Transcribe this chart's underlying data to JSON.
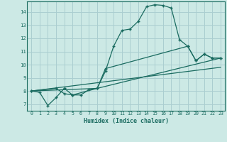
{
  "xlabel": "Humidex (Indice chaleur)",
  "bg_color": "#cce9e5",
  "grid_color": "#aaced0",
  "line_color": "#1a6b60",
  "xlim": [
    -0.5,
    23.5
  ],
  "ylim": [
    6.5,
    14.8
  ],
  "yticks": [
    7,
    8,
    9,
    10,
    11,
    12,
    13,
    14
  ],
  "xticks": [
    0,
    1,
    2,
    3,
    4,
    5,
    6,
    7,
    8,
    9,
    10,
    11,
    12,
    13,
    14,
    15,
    16,
    17,
    18,
    19,
    20,
    21,
    22,
    23
  ],
  "series1": [
    [
      0,
      8.0
    ],
    [
      1,
      7.9
    ],
    [
      2,
      6.9
    ],
    [
      3,
      7.5
    ],
    [
      4,
      8.2
    ],
    [
      5,
      7.7
    ],
    [
      6,
      7.7
    ],
    [
      7,
      8.1
    ],
    [
      8,
      8.2
    ],
    [
      9,
      9.5
    ],
    [
      10,
      11.4
    ],
    [
      11,
      12.6
    ],
    [
      12,
      12.7
    ],
    [
      13,
      13.3
    ],
    [
      14,
      14.4
    ],
    [
      15,
      14.55
    ],
    [
      16,
      14.5
    ],
    [
      17,
      14.3
    ],
    [
      18,
      11.9
    ],
    [
      19,
      11.4
    ],
    [
      20,
      10.3
    ],
    [
      21,
      10.8
    ],
    [
      22,
      10.5
    ],
    [
      23,
      10.5
    ]
  ],
  "series2": [
    [
      0,
      8.0
    ],
    [
      3,
      8.2
    ],
    [
      4,
      7.8
    ],
    [
      5,
      7.7
    ],
    [
      8,
      8.2
    ],
    [
      9,
      9.7
    ],
    [
      19,
      11.4
    ],
    [
      20,
      10.3
    ],
    [
      21,
      10.8
    ],
    [
      22,
      10.5
    ],
    [
      23,
      10.5
    ]
  ],
  "series3": [
    [
      0,
      8.0
    ],
    [
      8,
      8.2
    ],
    [
      23,
      10.5
    ]
  ],
  "series4": [
    [
      0,
      8.0
    ],
    [
      23,
      9.8
    ]
  ]
}
